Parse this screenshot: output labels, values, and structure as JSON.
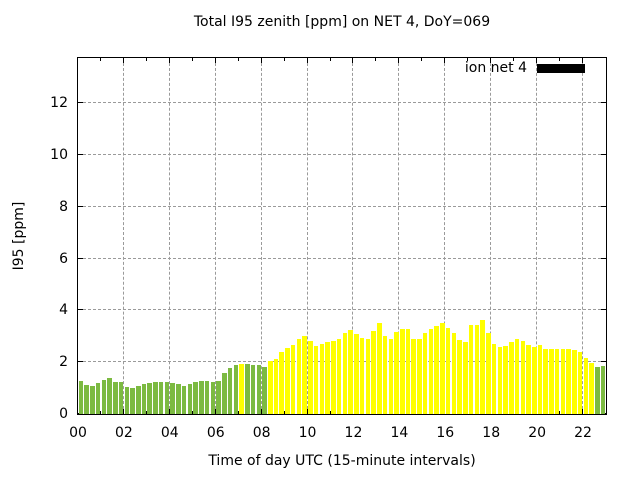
{
  "chart_data": {
    "type": "bar",
    "title": "Total I95 zenith [ppm] on NET 4, DoY=069",
    "xlabel": "Time of day UTC (15-minute intervals)",
    "ylabel": "I95 [ppm]",
    "legend": {
      "position": "top-right-inside",
      "entries": [
        {
          "label": "ion net 4",
          "swatch_color": "#000000"
        }
      ]
    },
    "grid": true,
    "x_axis": {
      "start": "00:00",
      "interval_minutes": 15,
      "range_hours": [
        0,
        23
      ],
      "tick_hours": [
        0,
        2,
        4,
        6,
        8,
        10,
        12,
        14,
        16,
        18,
        20,
        22
      ],
      "tick_labels": [
        "00",
        "02",
        "04",
        "06",
        "08",
        "10",
        "12",
        "14",
        "16",
        "18",
        "20",
        "22"
      ],
      "minor_tick_every_hours": 1
    },
    "y_axis": {
      "range": [
        0,
        13.75
      ],
      "tick_values": [
        0,
        2,
        4,
        6,
        8,
        10,
        12
      ],
      "tick_labels": [
        "0",
        "2",
        "4",
        "6",
        "8",
        "10",
        "12"
      ]
    },
    "bar_colors_legend": {
      "g": "#7cba41",
      "y": "#ffff00"
    },
    "series": [
      {
        "name": "ion net 4",
        "n_bars": 92,
        "values": [
          1.28,
          1.13,
          1.08,
          1.19,
          1.32,
          1.4,
          1.24,
          1.22,
          1.05,
          1.0,
          1.08,
          1.17,
          1.19,
          1.24,
          1.22,
          1.24,
          1.19,
          1.14,
          1.1,
          1.17,
          1.22,
          1.28,
          1.27,
          1.25,
          1.28,
          1.58,
          1.78,
          1.9,
          1.95,
          1.92,
          1.9,
          1.88,
          1.82,
          2.04,
          2.13,
          2.38,
          2.55,
          2.68,
          2.91,
          3.02,
          2.82,
          2.63,
          2.7,
          2.79,
          2.82,
          2.89,
          3.14,
          3.25,
          3.08,
          2.95,
          2.91,
          3.21,
          3.53,
          3.02,
          2.89,
          3.17,
          3.27,
          3.3,
          2.91,
          2.91,
          3.12,
          3.27,
          3.4,
          3.5,
          3.34,
          3.12,
          2.86,
          2.8,
          3.42,
          3.42,
          3.65,
          3.14,
          2.7,
          2.57,
          2.61,
          2.8,
          2.88,
          2.82,
          2.66,
          2.6,
          2.66,
          2.53,
          2.5,
          2.53,
          2.5,
          2.53,
          2.48,
          2.38,
          2.15,
          1.96,
          1.8,
          1.84
        ],
        "bar_colors": [
          "g",
          "g",
          "g",
          "g",
          "g",
          "g",
          "g",
          "g",
          "g",
          "g",
          "g",
          "g",
          "g",
          "g",
          "g",
          "g",
          "g",
          "g",
          "g",
          "g",
          "g",
          "g",
          "g",
          "g",
          "g",
          "g",
          "g",
          "g",
          "y",
          "g",
          "g",
          "g",
          "g",
          "y",
          "y",
          "y",
          "y",
          "y",
          "y",
          "y",
          "y",
          "y",
          "y",
          "y",
          "y",
          "y",
          "y",
          "y",
          "y",
          "y",
          "y",
          "y",
          "y",
          "y",
          "y",
          "y",
          "y",
          "y",
          "y",
          "y",
          "y",
          "y",
          "y",
          "y",
          "y",
          "y",
          "y",
          "y",
          "y",
          "y",
          "y",
          "y",
          "y",
          "y",
          "y",
          "y",
          "y",
          "y",
          "y",
          "y",
          "y",
          "y",
          "y",
          "y",
          "y",
          "y",
          "y",
          "y",
          "y",
          "y",
          "g",
          "g"
        ]
      }
    ]
  },
  "colors": {
    "border": "#000000",
    "grid": "#9a9a9a",
    "green_bar": "#7cba41",
    "yellow_bar": "#ffff00",
    "legend_swatch": "#000000",
    "background": "#ffffff"
  }
}
